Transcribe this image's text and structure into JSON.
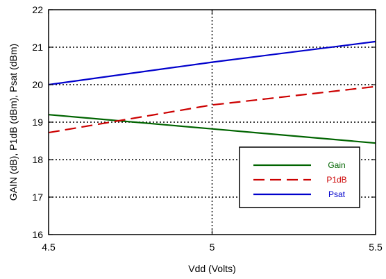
{
  "chart_data": {
    "type": "line",
    "title": "",
    "xlabel": "Vdd (Volts)",
    "ylabel": "GAIN (dB), P1dB (dBm), Psat (dBm)",
    "xlim": [
      4.5,
      5.5
    ],
    "ylim": [
      16,
      22
    ],
    "xticks": [
      4.5,
      5,
      5.5
    ],
    "xtick_labels": [
      "4.5",
      "5",
      "5.5"
    ],
    "yticks": [
      16,
      17,
      18,
      19,
      20,
      21,
      22
    ],
    "ytick_labels": [
      "16",
      "17",
      "18",
      "19",
      "20",
      "21",
      "22"
    ],
    "grid": true,
    "legend_position": "bottom-right",
    "series": [
      {
        "name": "Gain",
        "color": "#006400",
        "dash": "solid",
        "x": [
          4.5,
          5.0,
          5.5
        ],
        "y": [
          19.2,
          18.82,
          18.44
        ]
      },
      {
        "name": "P1dB",
        "color": "#cc0000",
        "dash": "dashed",
        "x": [
          4.5,
          5.0,
          5.5
        ],
        "y": [
          18.72,
          19.46,
          19.95
        ]
      },
      {
        "name": "Psat",
        "color": "#0000cc",
        "dash": "solid",
        "x": [
          4.5,
          5.0,
          5.5
        ],
        "y": [
          20.0,
          20.6,
          21.15
        ]
      }
    ]
  }
}
